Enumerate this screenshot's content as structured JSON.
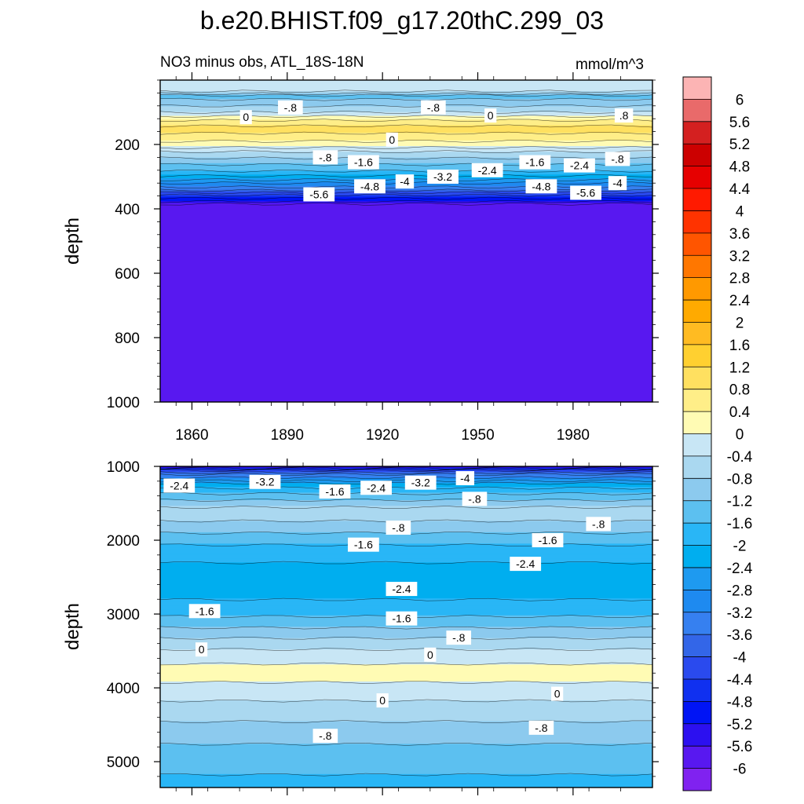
{
  "figure": {
    "title": "b.e20.BHIST.f09_g17.20thC.299_03",
    "left_subtitle": "NO3 minus obs, ATL_18S-18N",
    "right_subtitle": "mmol/m^3"
  },
  "chart_data": [
    {
      "type": "heatmap",
      "panel": "upper",
      "xlim": [
        1850,
        2005
      ],
      "ylim": [
        1000,
        0
      ],
      "xticks": [
        1860,
        1890,
        1920,
        1950,
        1980
      ],
      "yticks": [
        200,
        400,
        600,
        800,
        1000
      ],
      "ylabel": "depth",
      "xlabel": "",
      "grid": false,
      "depth_profile": [
        {
          "depth": 30,
          "value": -0.2
        },
        {
          "depth": 50,
          "value": -1.4
        },
        {
          "depth": 70,
          "value": -1.0
        },
        {
          "depth": 95,
          "value": -0.5
        },
        {
          "depth": 125,
          "value": 0.4
        },
        {
          "depth": 150,
          "value": 1.0
        },
        {
          "depth": 175,
          "value": 0.6
        },
        {
          "depth": 200,
          "value": 0.2
        },
        {
          "depth": 230,
          "value": -0.6
        },
        {
          "depth": 260,
          "value": -1.2
        },
        {
          "depth": 290,
          "value": -1.8
        },
        {
          "depth": 315,
          "value": -2.6
        },
        {
          "depth": 340,
          "value": -3.6
        },
        {
          "depth": 360,
          "value": -4.6
        },
        {
          "depth": 380,
          "value": -5.4
        },
        {
          "depth": 395,
          "value": -6.0
        },
        {
          "depth": 1000,
          "value": -6.0
        }
      ],
      "contour_labels": [
        {
          "text": "-.8",
          "x": 1891,
          "depth": 85
        },
        {
          "text": "-.8",
          "x": 1936,
          "depth": 85
        },
        {
          "text": "0",
          "x": 1877,
          "depth": 115
        },
        {
          "text": "0",
          "x": 1954,
          "depth": 110
        },
        {
          "text": ".8",
          "x": 1996,
          "depth": 110
        },
        {
          "text": "0",
          "x": 1923,
          "depth": 185
        },
        {
          "text": "-.8",
          "x": 1902,
          "depth": 240
        },
        {
          "text": "-.8",
          "x": 1994,
          "depth": 245
        },
        {
          "text": "-1.6",
          "x": 1914,
          "depth": 255
        },
        {
          "text": "-1.6",
          "x": 1968,
          "depth": 255
        },
        {
          "text": "-2.4",
          "x": 1953,
          "depth": 280
        },
        {
          "text": "-2.4",
          "x": 1982,
          "depth": 265
        },
        {
          "text": "-3.2",
          "x": 1939,
          "depth": 300
        },
        {
          "text": "-4",
          "x": 1927,
          "depth": 315
        },
        {
          "text": "-4",
          "x": 1994,
          "depth": 320
        },
        {
          "text": "-4.8",
          "x": 1916,
          "depth": 330
        },
        {
          "text": "-4.8",
          "x": 1970,
          "depth": 330
        },
        {
          "text": "-5.6",
          "x": 1900,
          "depth": 355
        },
        {
          "text": "-5.6",
          "x": 1984,
          "depth": 350
        }
      ]
    },
    {
      "type": "heatmap",
      "panel": "lower",
      "xlim": [
        1850,
        2005
      ],
      "ylim": [
        5350,
        1000
      ],
      "xticks": [
        1860,
        1890,
        1920,
        1950,
        1980
      ],
      "yticks": [
        1000,
        2000,
        3000,
        4000,
        5000
      ],
      "ylabel": "depth",
      "xlabel": "",
      "grid": false,
      "depth_profile": [
        {
          "depth": 1000,
          "value": -6.0
        },
        {
          "depth": 1050,
          "value": -4.4
        },
        {
          "depth": 1120,
          "value": -3.4
        },
        {
          "depth": 1250,
          "value": -2.2
        },
        {
          "depth": 1400,
          "value": -1.4
        },
        {
          "depth": 1600,
          "value": -0.6
        },
        {
          "depth": 1800,
          "value": -0.9
        },
        {
          "depth": 2000,
          "value": -1.5
        },
        {
          "depth": 2300,
          "value": -2.0
        },
        {
          "depth": 2600,
          "value": -2.2
        },
        {
          "depth": 2900,
          "value": -1.9
        },
        {
          "depth": 3150,
          "value": -1.3
        },
        {
          "depth": 3350,
          "value": -0.7
        },
        {
          "depth": 3550,
          "value": -0.2
        },
        {
          "depth": 3800,
          "value": 0.2
        },
        {
          "depth": 4050,
          "value": -0.2
        },
        {
          "depth": 4300,
          "value": -0.6
        },
        {
          "depth": 4600,
          "value": -1.0
        },
        {
          "depth": 5000,
          "value": -1.5
        },
        {
          "depth": 5350,
          "value": -1.7
        }
      ],
      "contour_labels": [
        {
          "text": "-2.4",
          "x": 1856,
          "depth": 1260
        },
        {
          "text": "-3.2",
          "x": 1883,
          "depth": 1210
        },
        {
          "text": "-1.6",
          "x": 1905,
          "depth": 1340
        },
        {
          "text": "-2.4",
          "x": 1918,
          "depth": 1290
        },
        {
          "text": "-3.2",
          "x": 1932,
          "depth": 1220
        },
        {
          "text": "-4",
          "x": 1946,
          "depth": 1160
        },
        {
          "text": "-.8",
          "x": 1949,
          "depth": 1440
        },
        {
          "text": "-.8",
          "x": 1925,
          "depth": 1830
        },
        {
          "text": "-.8",
          "x": 1988,
          "depth": 1780
        },
        {
          "text": "-1.6",
          "x": 1914,
          "depth": 2060
        },
        {
          "text": "-1.6",
          "x": 1972,
          "depth": 2000
        },
        {
          "text": "-2.4",
          "x": 1965,
          "depth": 2320
        },
        {
          "text": "-2.4",
          "x": 1926,
          "depth": 2660
        },
        {
          "text": "-1.6",
          "x": 1864,
          "depth": 2960
        },
        {
          "text": "-1.6",
          "x": 1926,
          "depth": 3060
        },
        {
          "text": "-.8",
          "x": 1944,
          "depth": 3320
        },
        {
          "text": "0",
          "x": 1863,
          "depth": 3480
        },
        {
          "text": "0",
          "x": 1935,
          "depth": 3550
        },
        {
          "text": "0",
          "x": 1920,
          "depth": 4170
        },
        {
          "text": "0",
          "x": 1975,
          "depth": 4080
        },
        {
          "text": "-.8",
          "x": 1902,
          "depth": 4650
        },
        {
          "text": "-.8",
          "x": 1970,
          "depth": 4540
        }
      ]
    }
  ],
  "colorbar": {
    "labels": [
      "6",
      "5.6",
      "5.2",
      "4.8",
      "4.4",
      "4",
      "3.6",
      "3.2",
      "2.8",
      "2.4",
      "2",
      "1.6",
      "1.2",
      "0.8",
      "0.4",
      "0",
      "-0.4",
      "-0.8",
      "-1.2",
      "-1.6",
      "-2",
      "-2.4",
      "-2.8",
      "-3.2",
      "-3.6",
      "-4",
      "-4.4",
      "-4.8",
      "-5.2",
      "-5.6",
      "-6"
    ],
    "colors": [
      "#FCB4B4",
      "#E96A6A",
      "#D42020",
      "#CC0000",
      "#E60000",
      "#FF1A00",
      "#FF3300",
      "#FF5500",
      "#FF7700",
      "#FF9900",
      "#FFAA00",
      "#FFBB22",
      "#FFD030",
      "#FFE060",
      "#FFEE88",
      "#FFFBB4",
      "#C8E6F5",
      "#AAD8F0",
      "#8CCAEE",
      "#5CC0F0",
      "#29B6F6",
      "#00AEEF",
      "#1E9AF0",
      "#1E8AF0",
      "#3680F0",
      "#3366E8",
      "#2A4AEE",
      "#1030F0",
      "#0014F5",
      "#2C10F0",
      "#5818F0",
      "#8022F0"
    ]
  }
}
